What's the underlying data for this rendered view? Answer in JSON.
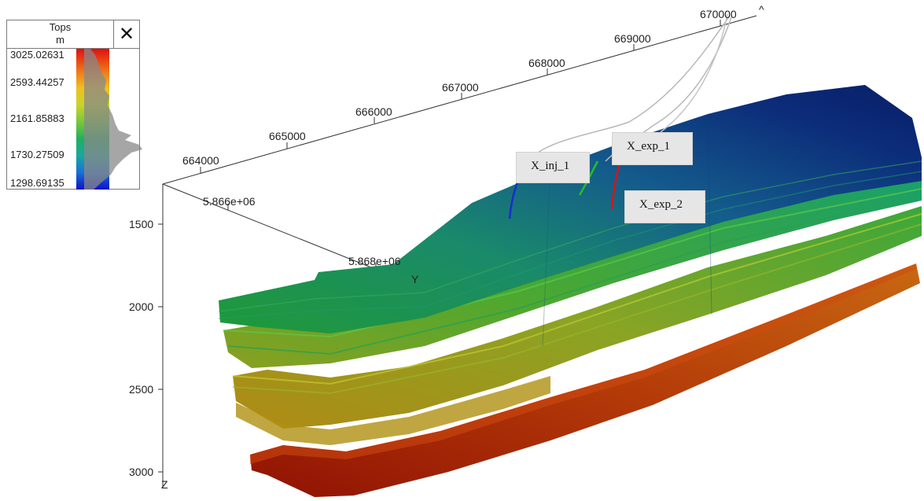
{
  "legend": {
    "title": "Tops",
    "unit": "m",
    "close_label": "✕",
    "values": [
      "3025.02631",
      "2593.44257",
      "2161.85883",
      "1730.27509",
      "1298.69135"
    ]
  },
  "axes": {
    "x_ticks": [
      "664000",
      "665000",
      "666000",
      "667000",
      "668000",
      "669000",
      "670000"
    ],
    "x_end_label": "^",
    "y_ticks": [
      "5.866e+06",
      "5.868e+06"
    ],
    "y_label": "Y",
    "z_ticks": [
      "1500",
      "2000",
      "2500",
      "3000"
    ],
    "z_label": "Z"
  },
  "wells": [
    {
      "name": "X_inj_1",
      "color": "#1a2ccf"
    },
    {
      "name": "X_exp_1",
      "color": "#22c022"
    },
    {
      "name": "X_exp_2",
      "color": "#d41616"
    }
  ],
  "colors": {
    "top": "#0a2a78",
    "mid": "#1a9a5a",
    "bottom": "#b01808",
    "well_path": "#b8b8b8"
  }
}
